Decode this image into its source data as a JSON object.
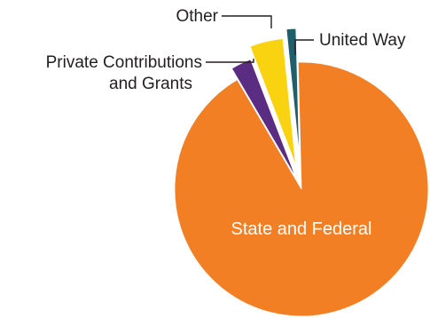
{
  "chart_data": {
    "type": "pie",
    "title": "",
    "slices": [
      {
        "label": "State and Federal",
        "value": 91.5,
        "color": "#f37f25"
      },
      {
        "label": "Private Contributions",
        "label_line2": "and Grants",
        "value": 2.6,
        "color": "#5b2d82"
      },
      {
        "label": "Other",
        "value": 4.2,
        "color": "#f9d30f"
      },
      {
        "label": "United Way",
        "value": 1.2,
        "color": "#1f5f6b"
      }
    ],
    "exploded": true,
    "legend": "none"
  }
}
